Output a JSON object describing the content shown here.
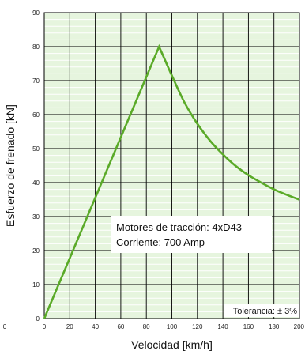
{
  "chart_data": {
    "type": "line",
    "xlabel": "Velocidad [km/h]",
    "ylabel": "Esfuerzo de frenado [kN]",
    "xlim": [
      0,
      200
    ],
    "ylim": [
      0,
      90
    ],
    "xticks": [
      0,
      20,
      40,
      60,
      80,
      100,
      120,
      140,
      160,
      180,
      200
    ],
    "yticks": [
      0,
      10,
      20,
      30,
      40,
      50,
      60,
      70,
      80,
      90
    ],
    "stray_left_label": "0",
    "grid": true,
    "background_color": "#e6f5de",
    "grid_color": "#000000",
    "series": [
      {
        "color": "#5aaa28",
        "x": [
          0,
          90,
          100,
          110,
          120,
          130,
          140,
          150,
          160,
          170,
          180,
          190,
          200
        ],
        "y": [
          0,
          80,
          71.5,
          63.5,
          57.3,
          52.3,
          48.3,
          44.9,
          42.2,
          40.0,
          38.0,
          36.4,
          35.0
        ]
      }
    ],
    "annotations": [
      {
        "text_lines": [
          "Motores de tracción: 4xD43",
          "Corriente: 700 Amp"
        ]
      },
      {
        "text": "Tolerancia: ± 3%"
      }
    ]
  }
}
